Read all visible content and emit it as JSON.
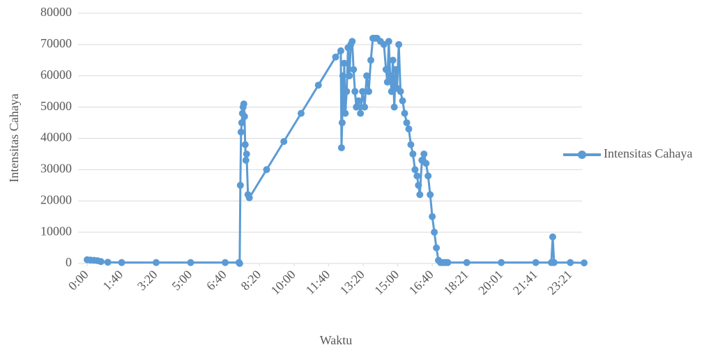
{
  "chart_data": {
    "type": "line",
    "xlabel": "Waktu",
    "ylabel": "Intensitas Cahaya",
    "xlim": [
      0,
      1440
    ],
    "ylim": [
      0,
      80000
    ],
    "xticks": [
      {
        "value": 0,
        "label": "0:00"
      },
      {
        "value": 100,
        "label": "1:40"
      },
      {
        "value": 200,
        "label": "3:20"
      },
      {
        "value": 300,
        "label": "5:00"
      },
      {
        "value": 400,
        "label": "6:40"
      },
      {
        "value": 500,
        "label": "8:20"
      },
      {
        "value": 600,
        "label": "10:00"
      },
      {
        "value": 700,
        "label": "11:40"
      },
      {
        "value": 800,
        "label": "13:20"
      },
      {
        "value": 900,
        "label": "15:00"
      },
      {
        "value": 1000,
        "label": "16:40"
      },
      {
        "value": 1101,
        "label": "18:21"
      },
      {
        "value": 1201,
        "label": "20:01"
      },
      {
        "value": 1301,
        "label": "21:41"
      },
      {
        "value": 1401,
        "label": "23:21"
      }
    ],
    "yticks": [
      0,
      10000,
      20000,
      30000,
      40000,
      50000,
      60000,
      70000,
      80000
    ],
    "grid": true,
    "legend": "right",
    "x": [
      0,
      10,
      20,
      30,
      40,
      60,
      100,
      200,
      300,
      400,
      440,
      442,
      444,
      446,
      448,
      450,
      452,
      454,
      456,
      458,
      460,
      462,
      466,
      470,
      520,
      570,
      620,
      670,
      720,
      735,
      737,
      739,
      741,
      743,
      745,
      748,
      752,
      756,
      760,
      764,
      768,
      772,
      776,
      780,
      786,
      792,
      798,
      804,
      810,
      816,
      822,
      828,
      834,
      840,
      850,
      860,
      866,
      870,
      874,
      878,
      882,
      886,
      890,
      894,
      898,
      903,
      908,
      914,
      920,
      926,
      932,
      938,
      944,
      950,
      956,
      960,
      964,
      970,
      976,
      982,
      988,
      994,
      1000,
      1006,
      1012,
      1018,
      1024,
      1030,
      1036,
      1040,
      1045,
      1100,
      1200,
      1300,
      1345,
      1349,
      1353,
      1400,
      1440
    ],
    "series": [
      {
        "name": "Intensitas Cahaya",
        "color": "#5b9bd5",
        "values": [
          1200,
          1100,
          1000,
          900,
          600,
          400,
          300,
          300,
          300,
          300,
          300,
          0,
          25000,
          42000,
          45000,
          48000,
          50000,
          51000,
          47000,
          38000,
          33000,
          35000,
          22000,
          21000,
          30000,
          39000,
          48000,
          57000,
          66000,
          68000,
          37000,
          45000,
          60000,
          50000,
          64000,
          48000,
          55000,
          69000,
          60000,
          70000,
          71000,
          62000,
          55000,
          50000,
          52000,
          48000,
          55000,
          50000,
          60000,
          55000,
          65000,
          72000,
          72000,
          72000,
          71000,
          70000,
          62000,
          58000,
          71000,
          60000,
          55000,
          65000,
          50000,
          62000,
          56000,
          70000,
          55000,
          52000,
          48000,
          45000,
          43000,
          38000,
          35000,
          30000,
          28000,
          25000,
          22000,
          33000,
          35000,
          32000,
          28000,
          22000,
          15000,
          10000,
          5000,
          1000,
          300,
          300,
          300,
          300,
          300,
          300,
          300,
          300,
          300,
          8500,
          300,
          300,
          200
        ]
      }
    ]
  }
}
